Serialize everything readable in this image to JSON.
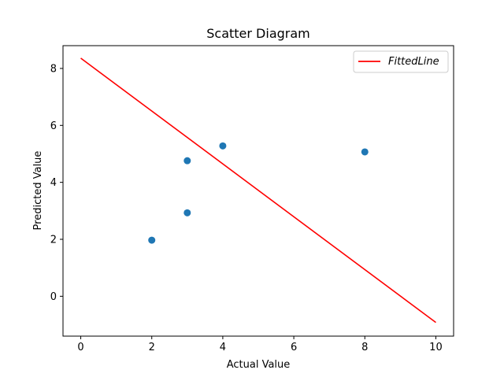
{
  "chart_data": {
    "type": "scatter",
    "title": "Scatter Diagram",
    "xlabel": "Actual Value",
    "ylabel": "Predicted Value",
    "xlim": [
      -0.5,
      10.5
    ],
    "ylim": [
      -1.4,
      8.8
    ],
    "xticks": [
      0,
      2,
      4,
      6,
      8,
      10
    ],
    "yticks": [
      0,
      2,
      4,
      6,
      8
    ],
    "xtick_labels": [
      "0",
      "2",
      "4",
      "6",
      "8",
      "10"
    ],
    "ytick_labels": [
      "0",
      "2",
      "4",
      "6",
      "8"
    ],
    "grid": false,
    "legend_placement": "top-right",
    "legend": {
      "entry": "FittedLine"
    },
    "scatter_series": {
      "color": "#1f77b4",
      "x": [
        2,
        3,
        3,
        4,
        8
      ],
      "y": [
        1.97,
        2.93,
        4.76,
        5.28,
        5.07
      ]
    },
    "fitted_line": {
      "color": "#ff0000",
      "x": [
        0,
        10
      ],
      "y": [
        8.36,
        -0.92
      ]
    }
  }
}
